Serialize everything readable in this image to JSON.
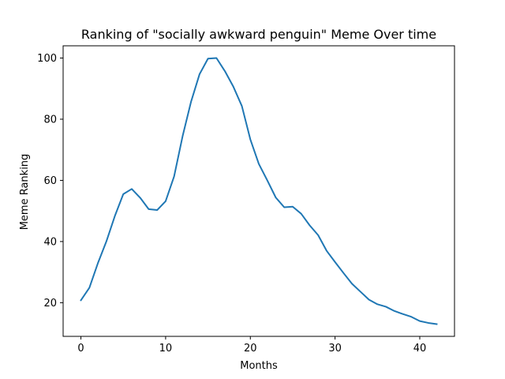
{
  "chart_data": {
    "type": "line",
    "title": "Ranking of \"socially awkward penguin\" Meme Over time",
    "xlabel": "Months",
    "ylabel": "Meme Ranking",
    "xlim": [
      -2.1,
      44.1
    ],
    "ylim": [
      9.0,
      104.0
    ],
    "xticks": [
      0,
      10,
      20,
      30,
      40
    ],
    "yticks": [
      20,
      40,
      60,
      80,
      100
    ],
    "grid": false,
    "legend": "none",
    "line_color": "#1f77b4",
    "series": [
      {
        "x": [
          0,
          1,
          2,
          3,
          4,
          5,
          6,
          7,
          8,
          9,
          10,
          11,
          12,
          13,
          14,
          15,
          16,
          17,
          18,
          19,
          20,
          21,
          22,
          23,
          24,
          25,
          26,
          27,
          28,
          29,
          30,
          31,
          32,
          33,
          34,
          35,
          36,
          37,
          38,
          39,
          40,
          41,
          42
        ],
        "values": [
          20.8,
          24.9,
          32.9,
          40.0,
          48.3,
          55.5,
          57.2,
          54.3,
          50.6,
          50.3,
          53.2,
          61.3,
          74.4,
          85.7,
          94.7,
          99.8,
          100.0,
          95.7,
          90.6,
          84.3,
          73.4,
          65.4,
          60.0,
          54.4,
          51.2,
          51.4,
          49.1,
          45.3,
          42.1,
          37.0,
          33.3,
          29.7,
          26.2,
          23.6,
          21.0,
          19.5,
          18.7,
          17.3,
          16.3,
          15.4,
          14.0,
          13.4,
          13.0
        ]
      }
    ]
  }
}
